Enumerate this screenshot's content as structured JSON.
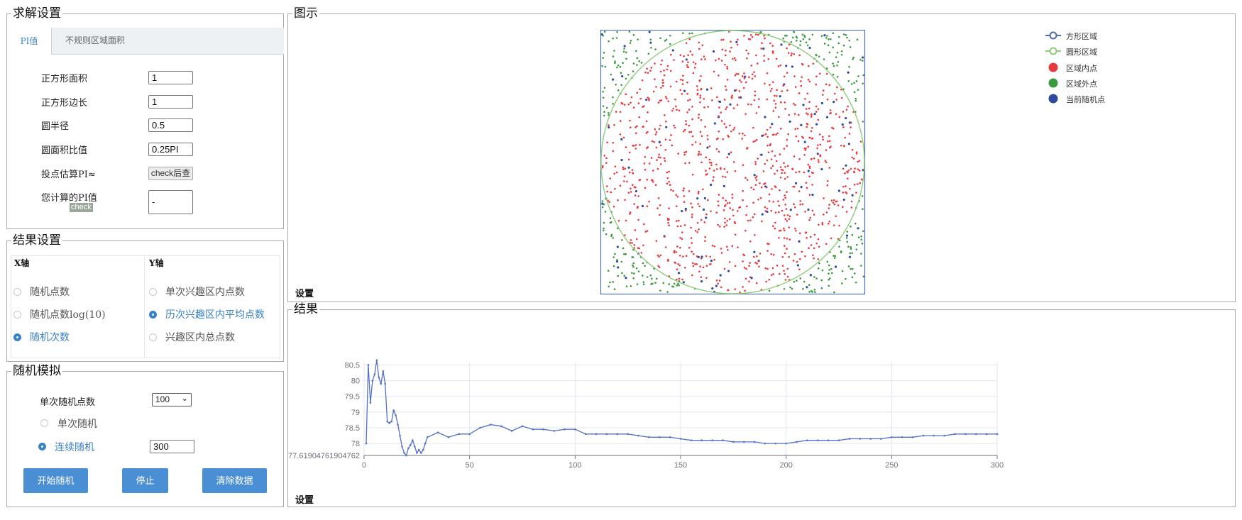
{
  "solve": {
    "title": "求解设置",
    "tabs": [
      {
        "label": "PI值",
        "active": true
      },
      {
        "label": "不规则区域面积",
        "active": false
      }
    ],
    "fields": [
      {
        "label": "正方形面积",
        "value": "1"
      },
      {
        "label": "正方形边长",
        "value": "1"
      },
      {
        "label": "圆半径",
        "value": "0.5"
      },
      {
        "label": "圆面积比值",
        "value": "0.25PI"
      }
    ],
    "estimate_label": "投点估算PI≈",
    "estimate_button": "check后查",
    "your_pi_label": "您计算的PI值",
    "check_label": "check",
    "your_pi_value": "-"
  },
  "result_settings": {
    "title": "结果设置",
    "x_axis_title": "X轴",
    "y_axis_title": "Y轴",
    "x_options": [
      {
        "label": "随机点数",
        "selected": false
      },
      {
        "label": "随机点数log(10)",
        "selected": false
      },
      {
        "label": "随机次数",
        "selected": true
      }
    ],
    "y_options": [
      {
        "label": "单次兴趣区内点数",
        "selected": false
      },
      {
        "label": "历次兴趣区内平均点数",
        "selected": true
      },
      {
        "label": "兴趣区内总点数",
        "selected": false
      }
    ]
  },
  "simulation": {
    "title": "随机模拟",
    "points_label": "单次随机点数",
    "points_value": "100",
    "single_label": "单次随机",
    "continuous_label": "连续随机",
    "continuous_value": "300",
    "mode_selected": "continuous",
    "buttons": {
      "start": "开始随机",
      "stop": "停止",
      "clear": "清除数据"
    }
  },
  "figure": {
    "title": "图示",
    "settings_label": "设置",
    "legend": [
      {
        "label": "方形区域",
        "color": "#4a6fb0",
        "shape": "ring"
      },
      {
        "label": "圆形区域",
        "color": "#8fcc7a",
        "shape": "ring"
      },
      {
        "label": "区域内点",
        "color": "#e8393f",
        "shape": "dot"
      },
      {
        "label": "区域外点",
        "color": "#3a9a3e",
        "shape": "dot"
      },
      {
        "label": "当前随机点",
        "color": "#2e4aa0",
        "shape": "dot"
      }
    ]
  },
  "results": {
    "title": "结果",
    "settings_label": "设置"
  },
  "chart_data": {
    "type": "line",
    "x": [
      1,
      2,
      3,
      4,
      5,
      6,
      7,
      8,
      9,
      10,
      11,
      12,
      13,
      14,
      15,
      16,
      17,
      18,
      19,
      20,
      21,
      22,
      23,
      24,
      25,
      26,
      27,
      28,
      29,
      30,
      35,
      40,
      45,
      50,
      55,
      60,
      65,
      70,
      75,
      80,
      85,
      90,
      95,
      100,
      105,
      110,
      115,
      120,
      125,
      130,
      135,
      140,
      145,
      150,
      155,
      160,
      165,
      170,
      175,
      180,
      185,
      190,
      195,
      200,
      205,
      210,
      215,
      220,
      225,
      230,
      235,
      240,
      245,
      250,
      255,
      260,
      265,
      270,
      275,
      280,
      285,
      290,
      295,
      300
    ],
    "y": [
      78.0,
      80.5,
      79.3,
      80.0,
      80.2,
      80.65,
      80.1,
      79.9,
      80.3,
      79.9,
      78.7,
      78.65,
      78.7,
      79.05,
      78.9,
      78.6,
      78.25,
      77.9,
      77.7,
      77.62,
      77.85,
      77.95,
      78.1,
      77.9,
      77.7,
      77.8,
      77.7,
      77.8,
      78.0,
      78.2,
      78.35,
      78.2,
      78.3,
      78.3,
      78.5,
      78.6,
      78.55,
      78.4,
      78.55,
      78.45,
      78.45,
      78.4,
      78.45,
      78.45,
      78.3,
      78.3,
      78.3,
      78.3,
      78.3,
      78.25,
      78.2,
      78.2,
      78.2,
      78.15,
      78.1,
      78.1,
      78.1,
      78.1,
      78.05,
      78.05,
      78.05,
      78.0,
      78.0,
      78.0,
      78.05,
      78.1,
      78.1,
      78.1,
      78.1,
      78.15,
      78.15,
      78.15,
      78.15,
      78.2,
      78.2,
      78.2,
      78.25,
      78.25,
      78.25,
      78.3,
      78.3,
      78.3,
      78.3,
      78.3
    ],
    "ylim": [
      77.61904761904762,
      80.6
    ],
    "xlim": [
      0,
      300
    ],
    "ytick_labels": [
      "77.61904761904762",
      "78",
      "78.5",
      "79",
      "79.5",
      "80",
      "80.5"
    ],
    "xtick_labels": [
      "0",
      "50",
      "100",
      "150",
      "200",
      "250",
      "300"
    ],
    "grid": true,
    "color": "#5470c6",
    "title": "",
    "xlabel": "",
    "ylabel": ""
  },
  "scatter": {
    "domain": [
      0,
      1
    ],
    "circle_radius": 0.5,
    "colors": {
      "inside": "#e8393f",
      "outside": "#3a9a3e",
      "current": "#2e4aa0",
      "square": "#4a6fb0",
      "circle": "#8fcc7a"
    }
  }
}
